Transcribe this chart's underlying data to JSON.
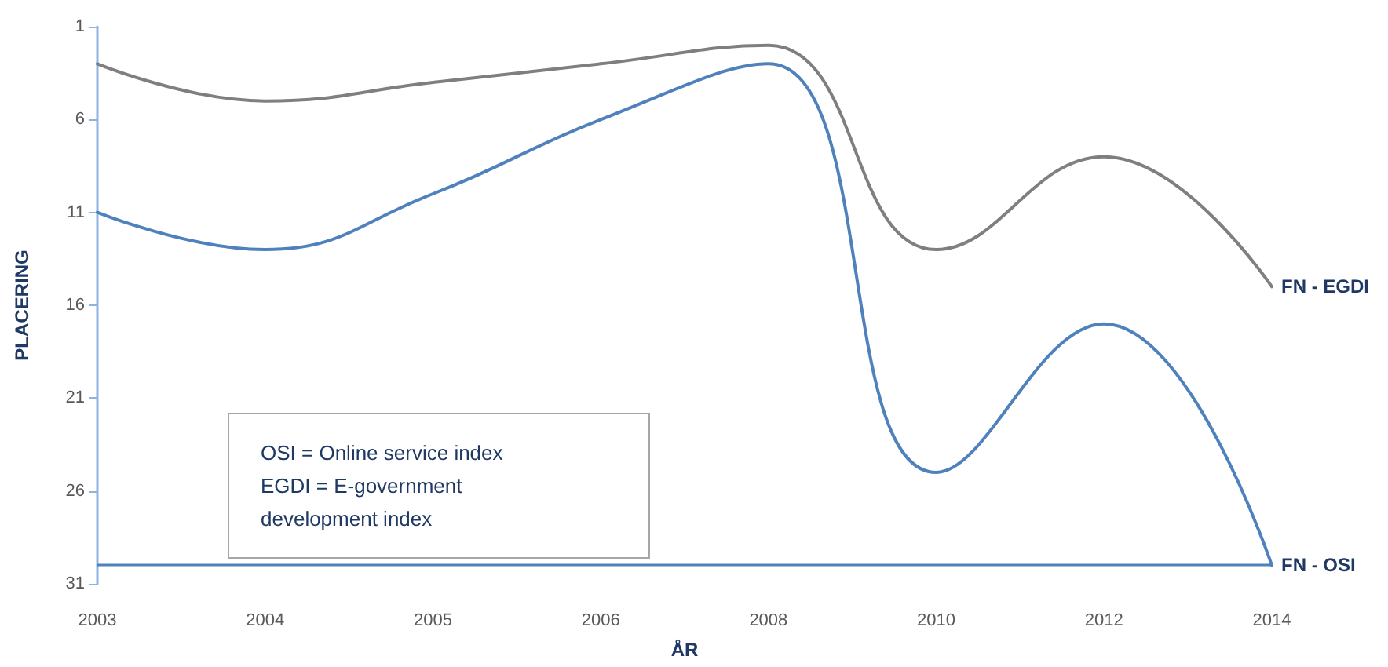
{
  "chart_data": {
    "type": "line",
    "xlabel": "ÅR",
    "ylabel": "PLACERING",
    "categories": [
      "2003",
      "2004",
      "2005",
      "2006",
      "2008",
      "2010",
      "2012",
      "2014"
    ],
    "series": [
      {
        "name": "FN - EGDI",
        "color": "#7f7f7f",
        "values": [
          3,
          5,
          4,
          3,
          2,
          13,
          8,
          15
        ]
      },
      {
        "name": "FN - OSI",
        "color": "#4f81bd",
        "values": [
          11,
          13,
          10,
          6,
          3,
          25,
          17,
          30
        ]
      }
    ],
    "ylim": [
      31,
      1
    ],
    "yticks": [
      1,
      6,
      11,
      16,
      21,
      26,
      31
    ],
    "ref_lines": [
      {
        "axis": "y",
        "value": 30,
        "color": "#4f81bd"
      }
    ],
    "annotations": [
      "OSI = Online service index\nEGDI = E-government\ndevelopment index"
    ],
    "grid": false,
    "legend": false,
    "marker": "none",
    "line_style": "solid"
  }
}
